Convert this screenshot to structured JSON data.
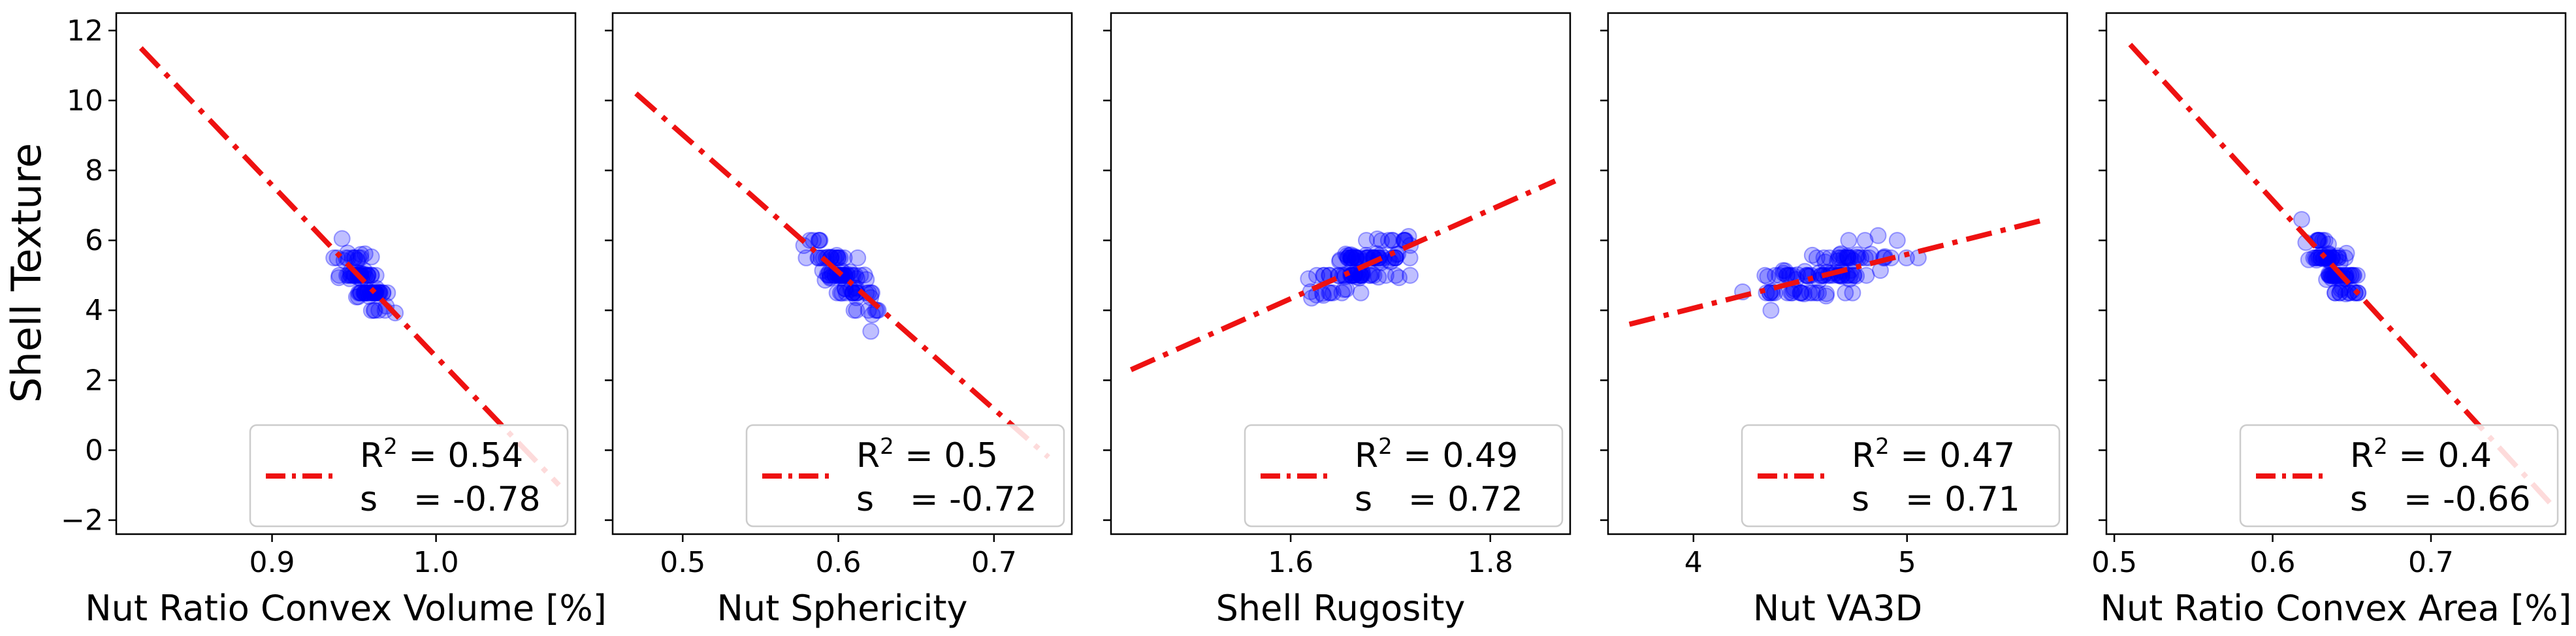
{
  "figure": {
    "ylabel": "Shell Texture",
    "ylim": [
      -2.4,
      12.5
    ],
    "yticks": [
      -2,
      0,
      2,
      4,
      6,
      8,
      10,
      12
    ],
    "ytick_labels": [
      "−2",
      "0",
      "2",
      "4",
      "6",
      "8",
      "10",
      "12"
    ],
    "colors": {
      "points": "#0000ff",
      "fit_line": "#ee1111",
      "axes": "#000000"
    }
  },
  "chart_data": [
    {
      "type": "scatter",
      "title": "",
      "xlabel": "Nut Ratio Convex Volume [%]",
      "xlim": [
        0.805,
        1.085
      ],
      "xticks": [
        0.9,
        1.0
      ],
      "xtick_labels": [
        "0.9",
        "1.0"
      ],
      "legend": {
        "position": "lower-right",
        "r2_label": "R",
        "r2_value": "= 0.54",
        "s_label": "s",
        "s_value": "= -0.78"
      },
      "fit_line": {
        "x": [
          0.82,
          1.075
        ],
        "y": [
          11.5,
          -1.0
        ]
      },
      "points": {
        "x_range": [
          0.92,
          0.985
        ],
        "center_x": 0.955,
        "slope": -36.0,
        "spread": 0.015,
        "count": 90
      }
    },
    {
      "type": "scatter",
      "title": "",
      "xlabel": "Nut Sphericity",
      "xlim": [
        0.455,
        0.75
      ],
      "xticks": [
        0.5,
        0.6,
        0.7
      ],
      "xtick_labels": [
        "0.5",
        "0.6",
        "0.7"
      ],
      "legend": {
        "position": "lower-right",
        "r2_label": "R",
        "r2_value": "= 0.5",
        "s_label": "s",
        "s_value": "= -0.72"
      },
      "fit_line": {
        "x": [
          0.47,
          0.735
        ],
        "y": [
          10.2,
          -0.2
        ]
      },
      "points": {
        "x_range": [
          0.565,
          0.645
        ],
        "center_x": 0.605,
        "slope": -38.0,
        "spread": 0.018,
        "count": 90
      }
    },
    {
      "type": "scatter",
      "title": "",
      "xlabel": "Shell Rugosity",
      "xlim": [
        1.42,
        1.88
      ],
      "xticks": [
        1.6,
        1.8
      ],
      "xtick_labels": [
        "1.6",
        "1.8"
      ],
      "legend": {
        "position": "lower-right",
        "r2_label": "R",
        "r2_value": "= 0.49",
        "s_label": "s",
        "s_value": "= 0.72"
      },
      "fit_line": {
        "x": [
          1.44,
          1.865
        ],
        "y": [
          2.3,
          7.7
        ]
      },
      "points": {
        "x_range": [
          1.57,
          1.78
        ],
        "center_x": 1.67,
        "slope": 12.7,
        "spread": 0.04,
        "count": 110
      }
    },
    {
      "type": "scatter",
      "title": "",
      "xlabel": "Nut VA3D",
      "xlim": [
        3.6,
        5.75
      ],
      "xticks": [
        4,
        5
      ],
      "xtick_labels": [
        "4",
        "5"
      ],
      "legend": {
        "position": "lower-right",
        "r2_label": "R",
        "r2_value": "= 0.47",
        "s_label": "s",
        "s_value": "= 0.71"
      },
      "fit_line": {
        "x": [
          3.7,
          5.65
        ],
        "y": [
          3.6,
          6.6
        ]
      },
      "points": {
        "x_range": [
          3.85,
          5.55
        ],
        "center_x": 4.6,
        "slope": 1.55,
        "spread": 0.3,
        "count": 110
      }
    },
    {
      "type": "scatter",
      "title": "",
      "xlabel": "Nut Ratio Convex Area [%]",
      "xlim": [
        0.495,
        0.785
      ],
      "xticks": [
        0.5,
        0.6,
        0.7
      ],
      "xtick_labels": [
        "0.5",
        "0.6",
        "0.7"
      ],
      "legend": {
        "position": "lower-right",
        "r2_label": "R",
        "r2_value": "= 0.4",
        "s_label": "s",
        "s_value": "= -0.66"
      },
      "fit_line": {
        "x": [
          0.51,
          0.775
        ],
        "y": [
          11.6,
          -1.5
        ]
      },
      "points": {
        "x_range": [
          0.605,
          0.675
        ],
        "center_x": 0.638,
        "slope": -50.0,
        "spread": 0.013,
        "count": 90
      }
    }
  ]
}
